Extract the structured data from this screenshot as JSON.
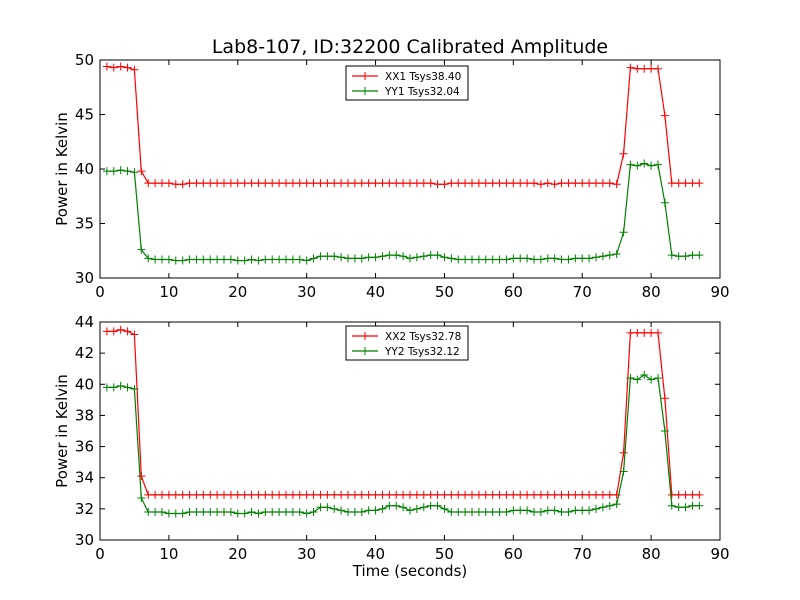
{
  "figure": {
    "title": "Lab8-107, ID:32200 Calibrated Amplitude"
  },
  "chart_data": [
    {
      "type": "line",
      "title": "Lab8-107, ID:32200 Calibrated Amplitude",
      "xlabel": "",
      "ylabel": "Power in Kelvin",
      "xlim": [
        0,
        90
      ],
      "ylim": [
        30,
        50
      ],
      "xticks": [
        0,
        10,
        20,
        30,
        40,
        50,
        60,
        70,
        80,
        90
      ],
      "yticks": [
        30,
        35,
        40,
        45,
        50
      ],
      "grid": false,
      "legend_position": "top-center",
      "x": [
        1,
        2,
        3,
        4,
        5,
        6,
        7,
        8,
        9,
        10,
        11,
        12,
        13,
        14,
        15,
        16,
        17,
        18,
        19,
        20,
        21,
        22,
        23,
        24,
        25,
        26,
        27,
        28,
        29,
        30,
        31,
        32,
        33,
        34,
        35,
        36,
        37,
        38,
        39,
        40,
        41,
        42,
        43,
        44,
        45,
        46,
        47,
        48,
        49,
        50,
        51,
        52,
        53,
        54,
        55,
        56,
        57,
        58,
        59,
        60,
        61,
        62,
        63,
        64,
        65,
        66,
        67,
        68,
        69,
        70,
        71,
        72,
        73,
        74,
        75,
        76,
        77,
        78,
        79,
        80,
        81,
        82,
        83,
        84,
        85,
        86,
        87
      ],
      "series": [
        {
          "name": "XX1 Tsys38.40",
          "color": "#ff0000",
          "values": [
            49.4,
            49.3,
            49.4,
            49.3,
            49.1,
            39.8,
            38.7,
            38.7,
            38.7,
            38.7,
            38.6,
            38.6,
            38.7,
            38.7,
            38.7,
            38.7,
            38.7,
            38.7,
            38.7,
            38.7,
            38.7,
            38.7,
            38.7,
            38.7,
            38.7,
            38.7,
            38.7,
            38.7,
            38.7,
            38.7,
            38.7,
            38.7,
            38.7,
            38.7,
            38.7,
            38.7,
            38.7,
            38.7,
            38.7,
            38.7,
            38.7,
            38.7,
            38.7,
            38.7,
            38.7,
            38.7,
            38.7,
            38.7,
            38.6,
            38.6,
            38.7,
            38.7,
            38.7,
            38.7,
            38.7,
            38.7,
            38.7,
            38.7,
            38.7,
            38.7,
            38.7,
            38.7,
            38.7,
            38.6,
            38.7,
            38.6,
            38.7,
            38.7,
            38.7,
            38.7,
            38.7,
            38.7,
            38.7,
            38.7,
            38.6,
            41.4,
            49.3,
            49.2,
            49.2,
            49.2,
            49.2,
            44.9,
            38.7,
            38.7,
            38.7,
            38.7,
            38.7
          ]
        },
        {
          "name": "YY1 Tsys32.04",
          "color": "#008000",
          "values": [
            39.8,
            39.8,
            39.9,
            39.8,
            39.7,
            32.6,
            31.8,
            31.7,
            31.7,
            31.7,
            31.6,
            31.6,
            31.7,
            31.7,
            31.7,
            31.7,
            31.7,
            31.7,
            31.7,
            31.6,
            31.6,
            31.7,
            31.6,
            31.7,
            31.7,
            31.7,
            31.7,
            31.7,
            31.7,
            31.6,
            31.8,
            32.0,
            32.0,
            32.0,
            31.9,
            31.8,
            31.8,
            31.8,
            31.9,
            31.9,
            32.0,
            32.1,
            32.1,
            32.0,
            31.8,
            31.9,
            32.0,
            32.1,
            32.1,
            31.9,
            31.8,
            31.7,
            31.7,
            31.7,
            31.7,
            31.7,
            31.7,
            31.7,
            31.7,
            31.8,
            31.8,
            31.8,
            31.7,
            31.7,
            31.8,
            31.8,
            31.7,
            31.7,
            31.8,
            31.8,
            31.8,
            31.9,
            32.0,
            32.1,
            32.2,
            34.2,
            40.4,
            40.3,
            40.5,
            40.3,
            40.4,
            36.9,
            32.1,
            32.0,
            32.0,
            32.1,
            32.1
          ]
        }
      ]
    },
    {
      "type": "line",
      "title": "",
      "xlabel": "Time (seconds)",
      "ylabel": "Power in Kelvin",
      "xlim": [
        0,
        90
      ],
      "ylim": [
        30,
        44
      ],
      "xticks": [
        0,
        10,
        20,
        30,
        40,
        50,
        60,
        70,
        80,
        90
      ],
      "yticks": [
        30,
        32,
        34,
        36,
        38,
        40,
        42,
        44
      ],
      "grid": false,
      "legend_position": "top-center",
      "x": [
        1,
        2,
        3,
        4,
        5,
        6,
        7,
        8,
        9,
        10,
        11,
        12,
        13,
        14,
        15,
        16,
        17,
        18,
        19,
        20,
        21,
        22,
        23,
        24,
        25,
        26,
        27,
        28,
        29,
        30,
        31,
        32,
        33,
        34,
        35,
        36,
        37,
        38,
        39,
        40,
        41,
        42,
        43,
        44,
        45,
        46,
        47,
        48,
        49,
        50,
        51,
        52,
        53,
        54,
        55,
        56,
        57,
        58,
        59,
        60,
        61,
        62,
        63,
        64,
        65,
        66,
        67,
        68,
        69,
        70,
        71,
        72,
        73,
        74,
        75,
        76,
        77,
        78,
        79,
        80,
        81,
        82,
        83,
        84,
        85,
        86,
        87
      ],
      "series": [
        {
          "name": "XX2 Tsys32.78",
          "color": "#ff0000",
          "values": [
            43.4,
            43.4,
            43.5,
            43.4,
            43.2,
            34.1,
            32.9,
            32.9,
            32.9,
            32.9,
            32.9,
            32.9,
            32.9,
            32.9,
            32.9,
            32.9,
            32.9,
            32.9,
            32.9,
            32.9,
            32.9,
            32.9,
            32.9,
            32.9,
            32.9,
            32.9,
            32.9,
            32.9,
            32.9,
            32.9,
            32.9,
            32.9,
            32.9,
            32.9,
            32.9,
            32.9,
            32.9,
            32.9,
            32.9,
            32.9,
            32.9,
            32.9,
            32.9,
            32.9,
            32.9,
            32.9,
            32.9,
            32.9,
            32.9,
            32.9,
            32.9,
            32.9,
            32.9,
            32.9,
            32.9,
            32.9,
            32.9,
            32.9,
            32.9,
            32.9,
            32.9,
            32.9,
            32.9,
            32.9,
            32.9,
            32.9,
            32.9,
            32.9,
            32.9,
            32.9,
            32.9,
            32.9,
            32.9,
            32.9,
            32.9,
            35.6,
            43.3,
            43.3,
            43.3,
            43.3,
            43.3,
            39.1,
            32.9,
            32.9,
            32.9,
            32.9,
            32.9
          ]
        },
        {
          "name": "YY2 Tsys32.12",
          "color": "#008000",
          "values": [
            39.8,
            39.8,
            39.9,
            39.8,
            39.7,
            32.7,
            31.8,
            31.8,
            31.8,
            31.7,
            31.7,
            31.7,
            31.8,
            31.8,
            31.8,
            31.8,
            31.8,
            31.8,
            31.8,
            31.7,
            31.7,
            31.8,
            31.7,
            31.8,
            31.8,
            31.8,
            31.8,
            31.8,
            31.8,
            31.7,
            31.8,
            32.1,
            32.1,
            32.0,
            31.9,
            31.8,
            31.8,
            31.8,
            31.9,
            31.9,
            32.0,
            32.2,
            32.2,
            32.1,
            31.9,
            32.0,
            32.1,
            32.2,
            32.2,
            32.0,
            31.8,
            31.8,
            31.8,
            31.8,
            31.8,
            31.8,
            31.8,
            31.8,
            31.8,
            31.9,
            31.9,
            31.9,
            31.8,
            31.8,
            31.9,
            31.9,
            31.8,
            31.8,
            31.9,
            31.9,
            31.9,
            32.0,
            32.1,
            32.2,
            32.3,
            34.4,
            40.4,
            40.3,
            40.6,
            40.3,
            40.4,
            37.0,
            32.2,
            32.1,
            32.1,
            32.2,
            32.2
          ]
        }
      ]
    }
  ]
}
